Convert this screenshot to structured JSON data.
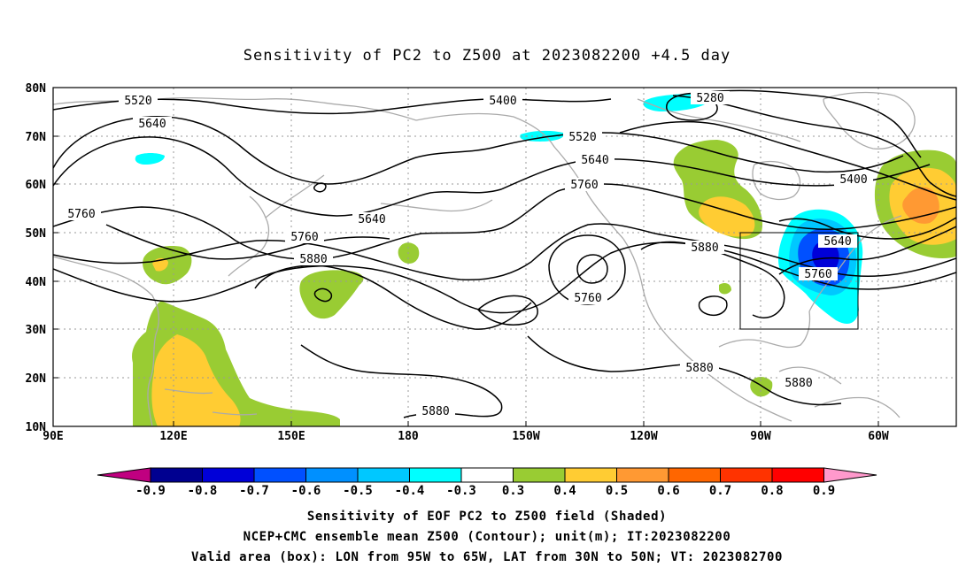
{
  "title": "Sensitivity of PC2 to Z500 at 2023082200 +4.5 day",
  "axes": {
    "lon_labels": [
      "90E",
      "120E",
      "150E",
      "180",
      "150W",
      "120W",
      "90W",
      "60W"
    ],
    "lat_labels": [
      "80N",
      "70N",
      "60N",
      "50N",
      "40N",
      "30N",
      "20N",
      "10N"
    ]
  },
  "contour_labels": [
    "5520",
    "5640",
    "5760",
    "5640",
    "5760",
    "5880",
    "5400",
    "5520",
    "5640",
    "5760",
    "5280",
    "5400",
    "5640",
    "5760",
    "5880",
    "5760",
    "5880",
    "5880",
    "5880"
  ],
  "colorbar": {
    "labels": [
      "-0.9",
      "-0.8",
      "-0.7",
      "-0.6",
      "-0.5",
      "-0.4",
      "-0.3",
      "0.3",
      "0.4",
      "0.5",
      "0.6",
      "0.7",
      "0.8",
      "0.9"
    ],
    "colors": [
      "#c00080",
      "#000090",
      "#0000d8",
      "#0050ff",
      "#0090ff",
      "#00c8ff",
      "#00ffff",
      "#ffffff",
      "#99cc33",
      "#ffcc33",
      "#ff9933",
      "#ff6600",
      "#ff3300",
      "#ff0000",
      "#ff99cc"
    ]
  },
  "footer": {
    "line1": "Sensitivity of EOF PC2 to Z500 field (Shaded)",
    "line2": "NCEP+CMC ensemble mean Z500 (Contour); unit(m); IT:2023082200",
    "line3": "Valid area (box): LON from 95W to 65W, LAT from 30N to 50N; VT: 2023082700"
  },
  "colors": {
    "green": "#99cc33",
    "yellow": "#ffcc33",
    "orange": "#ff9933",
    "cyan": "#00ffff",
    "lightblue": "#00c8ff",
    "blue": "#0050ff",
    "darkblue": "#0000d8",
    "coast": "#aaaaaa",
    "grid": "#999999"
  }
}
